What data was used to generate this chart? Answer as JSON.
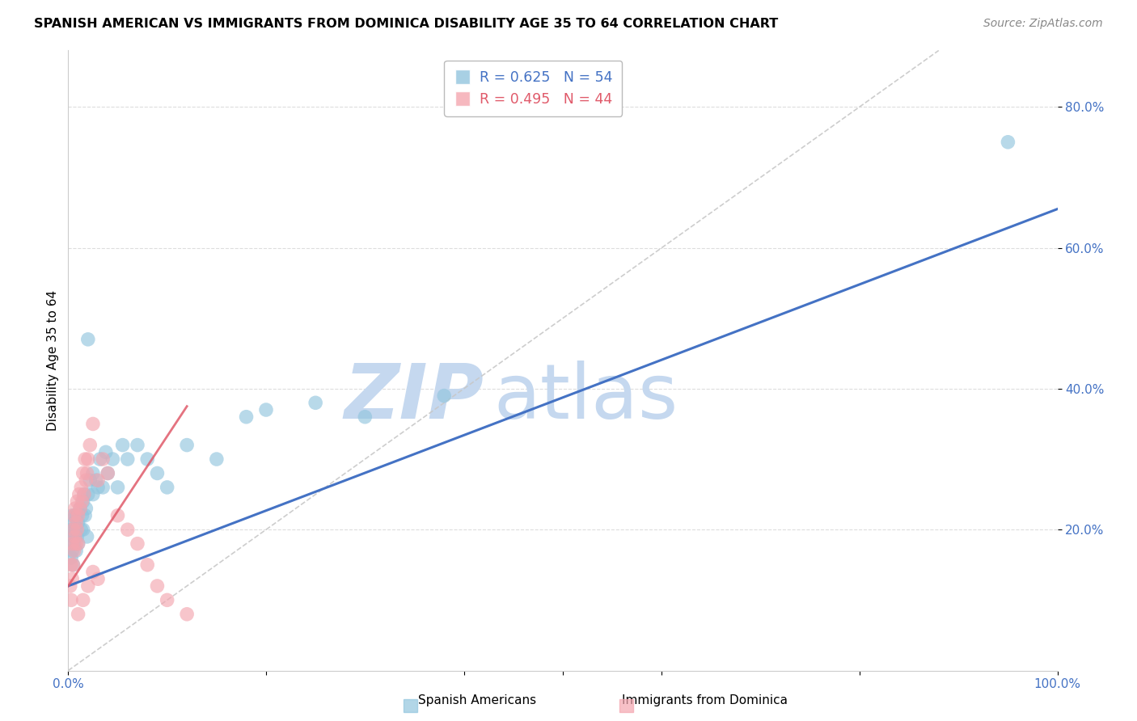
{
  "title": "SPANISH AMERICAN VS IMMIGRANTS FROM DOMINICA DISABILITY AGE 35 TO 64 CORRELATION CHART",
  "source": "Source: ZipAtlas.com",
  "ylabel": "Disability Age 35 to 64",
  "xlim": [
    0,
    1.0
  ],
  "ylim": [
    0,
    0.88
  ],
  "blue_R": 0.625,
  "blue_N": 54,
  "pink_R": 0.495,
  "pink_N": 44,
  "blue_color": "#92c5de",
  "pink_color": "#f4a6b0",
  "trend_blue_color": "#4472c4",
  "trend_pink_color": "#e05a6a",
  "watermark_color": "#c5d8ef",
  "blue_points_x": [
    0.002,
    0.003,
    0.003,
    0.004,
    0.004,
    0.005,
    0.005,
    0.005,
    0.006,
    0.006,
    0.007,
    0.007,
    0.008,
    0.008,
    0.009,
    0.009,
    0.01,
    0.01,
    0.012,
    0.013,
    0.014,
    0.015,
    0.015,
    0.016,
    0.017,
    0.018,
    0.019,
    0.02,
    0.022,
    0.025,
    0.025,
    0.028,
    0.03,
    0.032,
    0.035,
    0.038,
    0.04,
    0.045,
    0.05,
    0.055,
    0.06,
    0.07,
    0.08,
    0.09,
    0.1,
    0.12,
    0.15,
    0.18,
    0.2,
    0.25,
    0.3,
    0.38,
    0.02,
    0.95
  ],
  "blue_points_y": [
    0.18,
    0.16,
    0.2,
    0.17,
    0.22,
    0.15,
    0.2,
    0.19,
    0.18,
    0.21,
    0.22,
    0.19,
    0.2,
    0.17,
    0.22,
    0.19,
    0.21,
    0.18,
    0.23,
    0.2,
    0.22,
    0.24,
    0.2,
    0.25,
    0.22,
    0.23,
    0.19,
    0.25,
    0.27,
    0.25,
    0.28,
    0.27,
    0.26,
    0.3,
    0.26,
    0.31,
    0.28,
    0.3,
    0.26,
    0.32,
    0.3,
    0.32,
    0.3,
    0.28,
    0.26,
    0.32,
    0.3,
    0.36,
    0.37,
    0.38,
    0.36,
    0.39,
    0.47,
    0.75
  ],
  "pink_points_x": [
    0.002,
    0.003,
    0.003,
    0.004,
    0.004,
    0.005,
    0.005,
    0.006,
    0.006,
    0.007,
    0.007,
    0.008,
    0.008,
    0.009,
    0.009,
    0.01,
    0.01,
    0.011,
    0.012,
    0.013,
    0.014,
    0.015,
    0.016,
    0.017,
    0.018,
    0.019,
    0.02,
    0.022,
    0.025,
    0.03,
    0.035,
    0.04,
    0.05,
    0.06,
    0.07,
    0.08,
    0.09,
    0.1,
    0.12,
    0.01,
    0.015,
    0.02,
    0.025,
    0.03
  ],
  "pink_points_y": [
    0.12,
    0.15,
    0.1,
    0.18,
    0.13,
    0.2,
    0.15,
    0.22,
    0.17,
    0.19,
    0.23,
    0.21,
    0.18,
    0.24,
    0.2,
    0.22,
    0.18,
    0.25,
    0.23,
    0.26,
    0.24,
    0.28,
    0.25,
    0.3,
    0.27,
    0.28,
    0.3,
    0.32,
    0.35,
    0.27,
    0.3,
    0.28,
    0.22,
    0.2,
    0.18,
    0.15,
    0.12,
    0.1,
    0.08,
    0.08,
    0.1,
    0.12,
    0.14,
    0.13
  ],
  "blue_trend": [
    0.0,
    1.0,
    0.12,
    0.655
  ],
  "pink_trend": [
    0.0,
    0.12,
    0.12,
    0.375
  ],
  "diag_color": "#c8c8c8",
  "grid_color": "#dddddd",
  "tick_color": "#4472c4",
  "yticks": [
    0.2,
    0.4,
    0.6,
    0.8
  ],
  "ytick_labels": [
    "20.0%",
    "40.0%",
    "60.0%",
    "80.0%"
  ],
  "xtick_labels_show": [
    "0.0%",
    "100.0%"
  ],
  "legend_blue_label": "R = 0.625   N = 54",
  "legend_pink_label": "R = 0.495   N = 44"
}
